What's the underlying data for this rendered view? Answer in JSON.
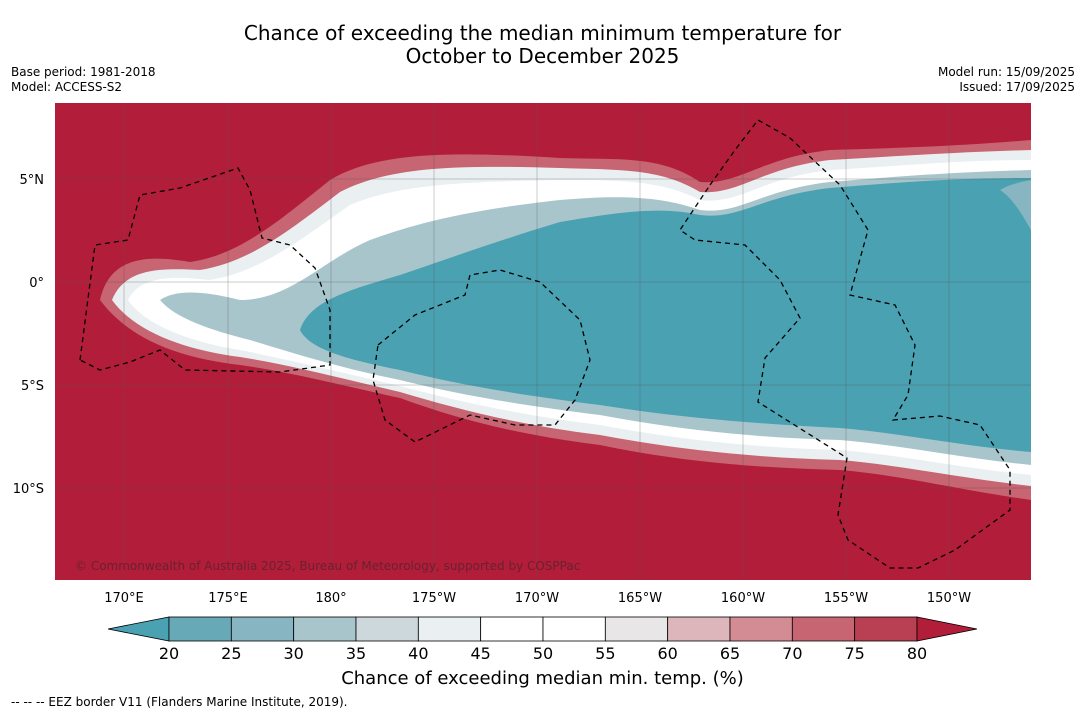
{
  "title_line1": "Chance of exceeding the median minimum temperature for",
  "title_line2": "October to December 2025",
  "base_period": "Base period: 1981-2018",
  "model": "Model: ACCESS-S2",
  "model_run": "Model run: 15/09/2025",
  "issued": "Issued: 17/09/2025",
  "copyright": "© Commonwealth of Australia 2025, Bureau of Meteorology, supported by COSPPac",
  "longitude_labels": [
    "170°E",
    "175°E",
    "180°",
    "175°W",
    "170°W",
    "165°W",
    "160°W",
    "155°W",
    "150°W"
  ],
  "latitude_labels": [
    "5°N",
    "0°",
    "5°S",
    "10°S"
  ],
  "colorbar": {
    "ticks": [
      "20",
      "25",
      "30",
      "35",
      "40",
      "45",
      "50",
      "55",
      "60",
      "65",
      "70",
      "75",
      "80"
    ],
    "colors": [
      "#4aa1b2",
      "#68a9b8",
      "#87b5c2",
      "#a8c5cc",
      "#cdd8dc",
      "#eaeff1",
      "#ffffff",
      "#ffffff",
      "#e8e6e7",
      "#ddb6bc",
      "#d48c94",
      "#c76572",
      "#b94052",
      "#b21d39"
    ],
    "label": "Chance of exceeding median min. temp. (%)"
  },
  "map_colors": {
    "high": "#b21d39",
    "low": "#4aa1b2",
    "mid": "#ffffff"
  },
  "footer": "--  --  -- EEZ border V11 (Flanders Marine Institute, 2019)."
}
